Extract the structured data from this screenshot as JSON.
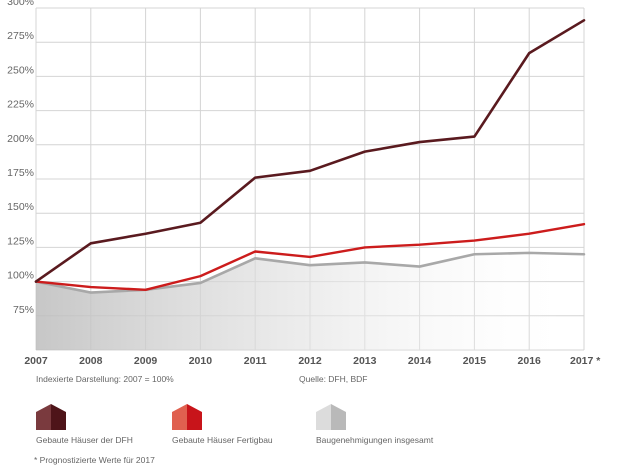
{
  "chart_data": {
    "type": "line",
    "categories": [
      "2007",
      "2008",
      "2009",
      "2010",
      "2011",
      "2012",
      "2013",
      "2014",
      "2015",
      "2016",
      "2017 *"
    ],
    "y_ticks": [
      "75%",
      "100%",
      "125%",
      "150%",
      "175%",
      "200%",
      "225%",
      "250%",
      "275%",
      "300%"
    ],
    "ylim": [
      50,
      300
    ],
    "grid": true,
    "legend_position": "bottom",
    "series": [
      {
        "name": "Gebaute Häuser der DFH",
        "color": "#5a1a1f",
        "values": [
          100,
          128,
          135,
          143,
          176,
          181,
          195,
          202,
          206,
          267,
          291
        ]
      },
      {
        "name": "Gebaute Häuser Fertigbau",
        "color": "#cc1c1c",
        "values": [
          100,
          96,
          94,
          104,
          122,
          118,
          125,
          127,
          130,
          135,
          142
        ]
      },
      {
        "name": "Baugenehmigungen insgesamt",
        "color": "#a8a8a8",
        "values": [
          100,
          92,
          94,
          99,
          117,
          112,
          114,
          111,
          120,
          121,
          120
        ]
      }
    ]
  },
  "notes": {
    "indexed": "Indexierte Darstellung: 2007 = 100%",
    "source": "Quelle: DFH, BDF",
    "footnote": "* Prognostizierte Werte für 2017"
  },
  "legend": [
    {
      "label": "Gebaute Häuser der DFH",
      "light": "#7a3a3e",
      "dark": "#4e1419"
    },
    {
      "label": "Gebaute Häuser Fertigbau",
      "light": "#e0604f",
      "dark": "#c8141a"
    },
    {
      "label": "Baugenehmigungen insgesamt",
      "light": "#dcdcdc",
      "dark": "#b9b9b9"
    }
  ]
}
